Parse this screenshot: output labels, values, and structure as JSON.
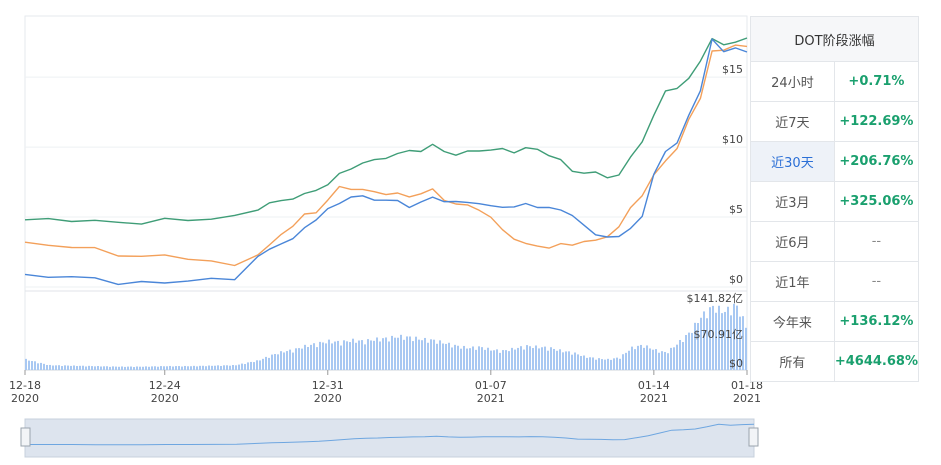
{
  "table": {
    "title": "DOT阶段涨幅",
    "rows": [
      {
        "label": "24小时",
        "value": "+0.71%"
      },
      {
        "label": "近7天",
        "value": "+122.69%"
      },
      {
        "label": "近30天",
        "value": "+206.76%"
      },
      {
        "label": "近3月",
        "value": "+325.06%"
      },
      {
        "label": "近6月",
        "value": "--"
      },
      {
        "label": "近1年",
        "value": "--"
      },
      {
        "label": "今年来",
        "value": "+136.12%"
      },
      {
        "label": "所有",
        "value": "+4644.68%"
      }
    ],
    "active_row": 2
  },
  "colors": {
    "green": "#3f9d77",
    "orange": "#f3a05a",
    "blue": "#4a86d8",
    "volume": "#a8c8f2"
  },
  "chart_data": {
    "type": "line",
    "x_ticks": [
      {
        "x": 0,
        "line1": "12-18",
        "line2": "2020"
      },
      {
        "x": 6,
        "line1": "12-24",
        "line2": "2020"
      },
      {
        "x": 13,
        "line1": "12-31",
        "line2": "2020"
      },
      {
        "x": 20,
        "line1": "01-07",
        "line2": "2021"
      },
      {
        "x": 27,
        "line1": "01-14",
        "line2": "2021"
      },
      {
        "x": 31,
        "line1": "01-18",
        "line2": "2021"
      }
    ],
    "xlim": [
      0,
      31
    ],
    "price": {
      "ylim": [
        0,
        19.3
      ],
      "y_ticks": [
        {
          "v": 0,
          "label": "$0"
        },
        {
          "v": 5,
          "label": "$5"
        },
        {
          "v": 10,
          "label": "$10"
        },
        {
          "v": 15,
          "label": "$15"
        }
      ]
    },
    "series": [
      {
        "color": "#3f9d77",
        "x": [
          0,
          1,
          2,
          3,
          4,
          5,
          6,
          7,
          8,
          9,
          10,
          10.5,
          11,
          11.5,
          12,
          12.5,
          13,
          13.5,
          14,
          14.5,
          15,
          15.5,
          16,
          16.5,
          17,
          17.5,
          18,
          18.5,
          19,
          19.5,
          20,
          20.5,
          21,
          21.5,
          22,
          22.5,
          23,
          23.5,
          24,
          24.5,
          25,
          25.5,
          26,
          26.5,
          27,
          27.5,
          28,
          28.5,
          29,
          29.5,
          30,
          30.5,
          31
        ],
        "values": [
          4.8,
          4.8,
          4.8,
          4.7,
          4.6,
          4.6,
          4.8,
          4.8,
          4.9,
          5.0,
          5.6,
          6.0,
          6.1,
          6.4,
          6.6,
          6.9,
          7.4,
          8.0,
          8.5,
          8.9,
          9.0,
          9.3,
          9.5,
          9.7,
          9.8,
          10.1,
          9.7,
          9.5,
          9.6,
          9.8,
          9.8,
          9.8,
          9.7,
          9.9,
          9.8,
          9.5,
          9.0,
          8.3,
          8.2,
          8.1,
          7.9,
          8.0,
          9.2,
          10.5,
          12.2,
          14.0,
          14.3,
          14.8,
          16.2,
          17.8,
          17.2,
          17.6,
          17.8
        ]
      },
      {
        "color": "#f3a05a",
        "x": [
          0,
          1,
          2,
          3,
          4,
          5,
          6,
          7,
          8,
          9,
          10,
          10.5,
          11,
          11.5,
          12,
          12.5,
          13,
          13.5,
          14,
          14.5,
          15,
          15.5,
          16,
          16.5,
          17,
          17.5,
          18,
          18.5,
          19,
          19.5,
          20,
          20.5,
          21,
          21.5,
          22,
          22.5,
          23,
          23.5,
          24,
          24.5,
          25,
          25.5,
          26,
          26.5,
          27,
          27.5,
          28,
          28.5,
          29,
          29.5,
          30,
          30.5,
          31
        ],
        "values": [
          3.2,
          3.0,
          2.9,
          2.7,
          2.3,
          2.2,
          2.2,
          2.1,
          1.8,
          1.5,
          2.4,
          2.9,
          3.8,
          4.4,
          5.1,
          5.4,
          6.2,
          7.1,
          7.1,
          6.9,
          6.8,
          6.7,
          6.6,
          6.5,
          6.7,
          6.9,
          6.3,
          5.9,
          5.8,
          5.6,
          4.9,
          4.1,
          3.5,
          3.0,
          3.0,
          2.8,
          3.0,
          3.1,
          3.2,
          3.3,
          3.7,
          4.2,
          5.7,
          6.6,
          7.9,
          9.1,
          9.9,
          11.9,
          13.6,
          16.8,
          16.9,
          17.4,
          17.2
        ]
      },
      {
        "color": "#4a86d8",
        "x": [
          0,
          1,
          2,
          3,
          4,
          5,
          6,
          7,
          8,
          9,
          10,
          10.5,
          11,
          11.5,
          12,
          12.5,
          13,
          13.5,
          14,
          14.5,
          15,
          15.5,
          16,
          16.5,
          17,
          17.5,
          18,
          18.5,
          19,
          19.5,
          20,
          20.5,
          21,
          21.5,
          22,
          22.5,
          23,
          23.5,
          24,
          24.5,
          25,
          25.5,
          26,
          26.5,
          27,
          27.5,
          28,
          28.5,
          29,
          29.5,
          30,
          30.5,
          31
        ],
        "values": [
          0.9,
          0.8,
          0.7,
          0.6,
          0.3,
          0.3,
          0.3,
          0.5,
          0.5,
          0.6,
          2.2,
          2.6,
          3.2,
          3.4,
          4.2,
          4.9,
          5.5,
          6.0,
          6.5,
          6.4,
          6.3,
          6.2,
          6.1,
          5.8,
          6.0,
          6.4,
          6.2,
          6.0,
          6.1,
          6.0,
          5.7,
          5.8,
          5.7,
          5.9,
          5.8,
          5.6,
          5.5,
          5.2,
          4.3,
          3.8,
          3.6,
          3.5,
          4.3,
          5.0,
          8.0,
          9.8,
          10.2,
          12.3,
          14.1,
          17.6,
          16.9,
          17.1,
          16.8
        ]
      }
    ],
    "volume": {
      "ylim": [
        0,
        152
      ],
      "y_ticks": [
        {
          "v": 0,
          "label": "$0"
        },
        {
          "v": 70.91,
          "label": "$70.91亿"
        },
        {
          "v": 141.82,
          "label": "$141.82亿"
        }
      ],
      "x": [
        0,
        1,
        2,
        3,
        4,
        5,
        6,
        7,
        8,
        9,
        10,
        10.5,
        11,
        11.5,
        12,
        12.5,
        13,
        13.5,
        14,
        14.5,
        15,
        15.5,
        16,
        16.5,
        17,
        17.5,
        18,
        18.5,
        19,
        19.5,
        20,
        20.5,
        21,
        21.5,
        22,
        22.5,
        23,
        23.5,
        24,
        24.5,
        25,
        25.5,
        26,
        26.5,
        27,
        27.5,
        28,
        28.5,
        29,
        29.5,
        30,
        30.5,
        31
      ],
      "values": [
        22,
        10,
        9,
        8,
        7,
        7,
        8,
        8,
        9,
        10,
        20,
        30,
        38,
        42,
        50,
        55,
        60,
        58,
        62,
        60,
        64,
        66,
        70,
        68,
        64,
        62,
        56,
        50,
        46,
        48,
        42,
        40,
        45,
        50,
        48,
        46,
        40,
        36,
        28,
        24,
        22,
        26,
        46,
        52,
        42,
        36,
        56,
        78,
        112,
        132,
        122,
        136,
        84
      ]
    }
  }
}
